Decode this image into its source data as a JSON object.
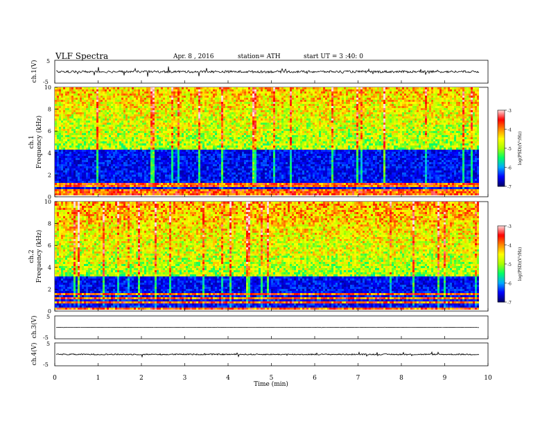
{
  "header": {
    "title": "VLF  Spectra",
    "date": "Apr. 8  , 2016",
    "station": "station= ATH",
    "start": "start  UT  =   3  :40:  0"
  },
  "chart_data": [
    {
      "type": "line",
      "panel": "ch1-waveform",
      "ylabel": "ch.1(V)",
      "ytick_labels": [
        "5",
        "-5"
      ],
      "ylim": [
        -5,
        5
      ],
      "baseline": 0,
      "noise_amplitude": 1
    },
    {
      "type": "heatmap",
      "panel": "ch1-spectrogram",
      "ylabel_top": "ch.1",
      "ylabel": "Frequency  (kHz)",
      "ylim": [
        0,
        10
      ],
      "yticks": [
        0,
        2,
        4,
        6,
        8,
        10
      ],
      "noise_floor_khz": 4.2,
      "colorbar": {
        "label": "log(PSD)(V²/Hz)",
        "range": [
          -7,
          -3
        ],
        "ticks": [
          "-3",
          "-4",
          "-5",
          "-6",
          "-7"
        ]
      }
    },
    {
      "type": "heatmap",
      "panel": "ch2-spectrogram",
      "ylabel_top": "ch.2",
      "ylabel": "Frequency  (kHz)",
      "ylim": [
        0,
        10
      ],
      "yticks": [
        0,
        2,
        4,
        6,
        8,
        10
      ],
      "noise_floor_khz": 3.0,
      "colorbar": {
        "label": "log(PSD)(V²/Hz)",
        "range": [
          -7,
          -3
        ],
        "ticks": [
          "-3",
          "-4",
          "-5",
          "-6",
          "-7"
        ]
      }
    },
    {
      "type": "line",
      "panel": "ch3-waveform",
      "ylabel": "ch.3(V)",
      "ytick_labels": [
        "5",
        "-5"
      ],
      "ylim": [
        -5,
        5
      ],
      "baseline": 0,
      "noise_amplitude": 0.1
    },
    {
      "type": "line",
      "panel": "ch4-waveform",
      "ylabel": "ch.4(V)",
      "ytick_labels": [
        "5",
        "-5"
      ],
      "ylim": [
        -5,
        5
      ],
      "baseline": 0,
      "noise_amplitude": 0.5
    }
  ],
  "x_axis": {
    "label": "Time  (min)",
    "range": [
      0,
      10
    ],
    "data_end": 9.8,
    "ticks": [
      0,
      1,
      2,
      3,
      4,
      5,
      6,
      7,
      8,
      9,
      10
    ]
  },
  "colorscale": [
    "#000066",
    "#0000ff",
    "#00aaff",
    "#00ff66",
    "#aaff00",
    "#ffff00",
    "#ff8800",
    "#ff0000",
    "#ffdddd"
  ]
}
